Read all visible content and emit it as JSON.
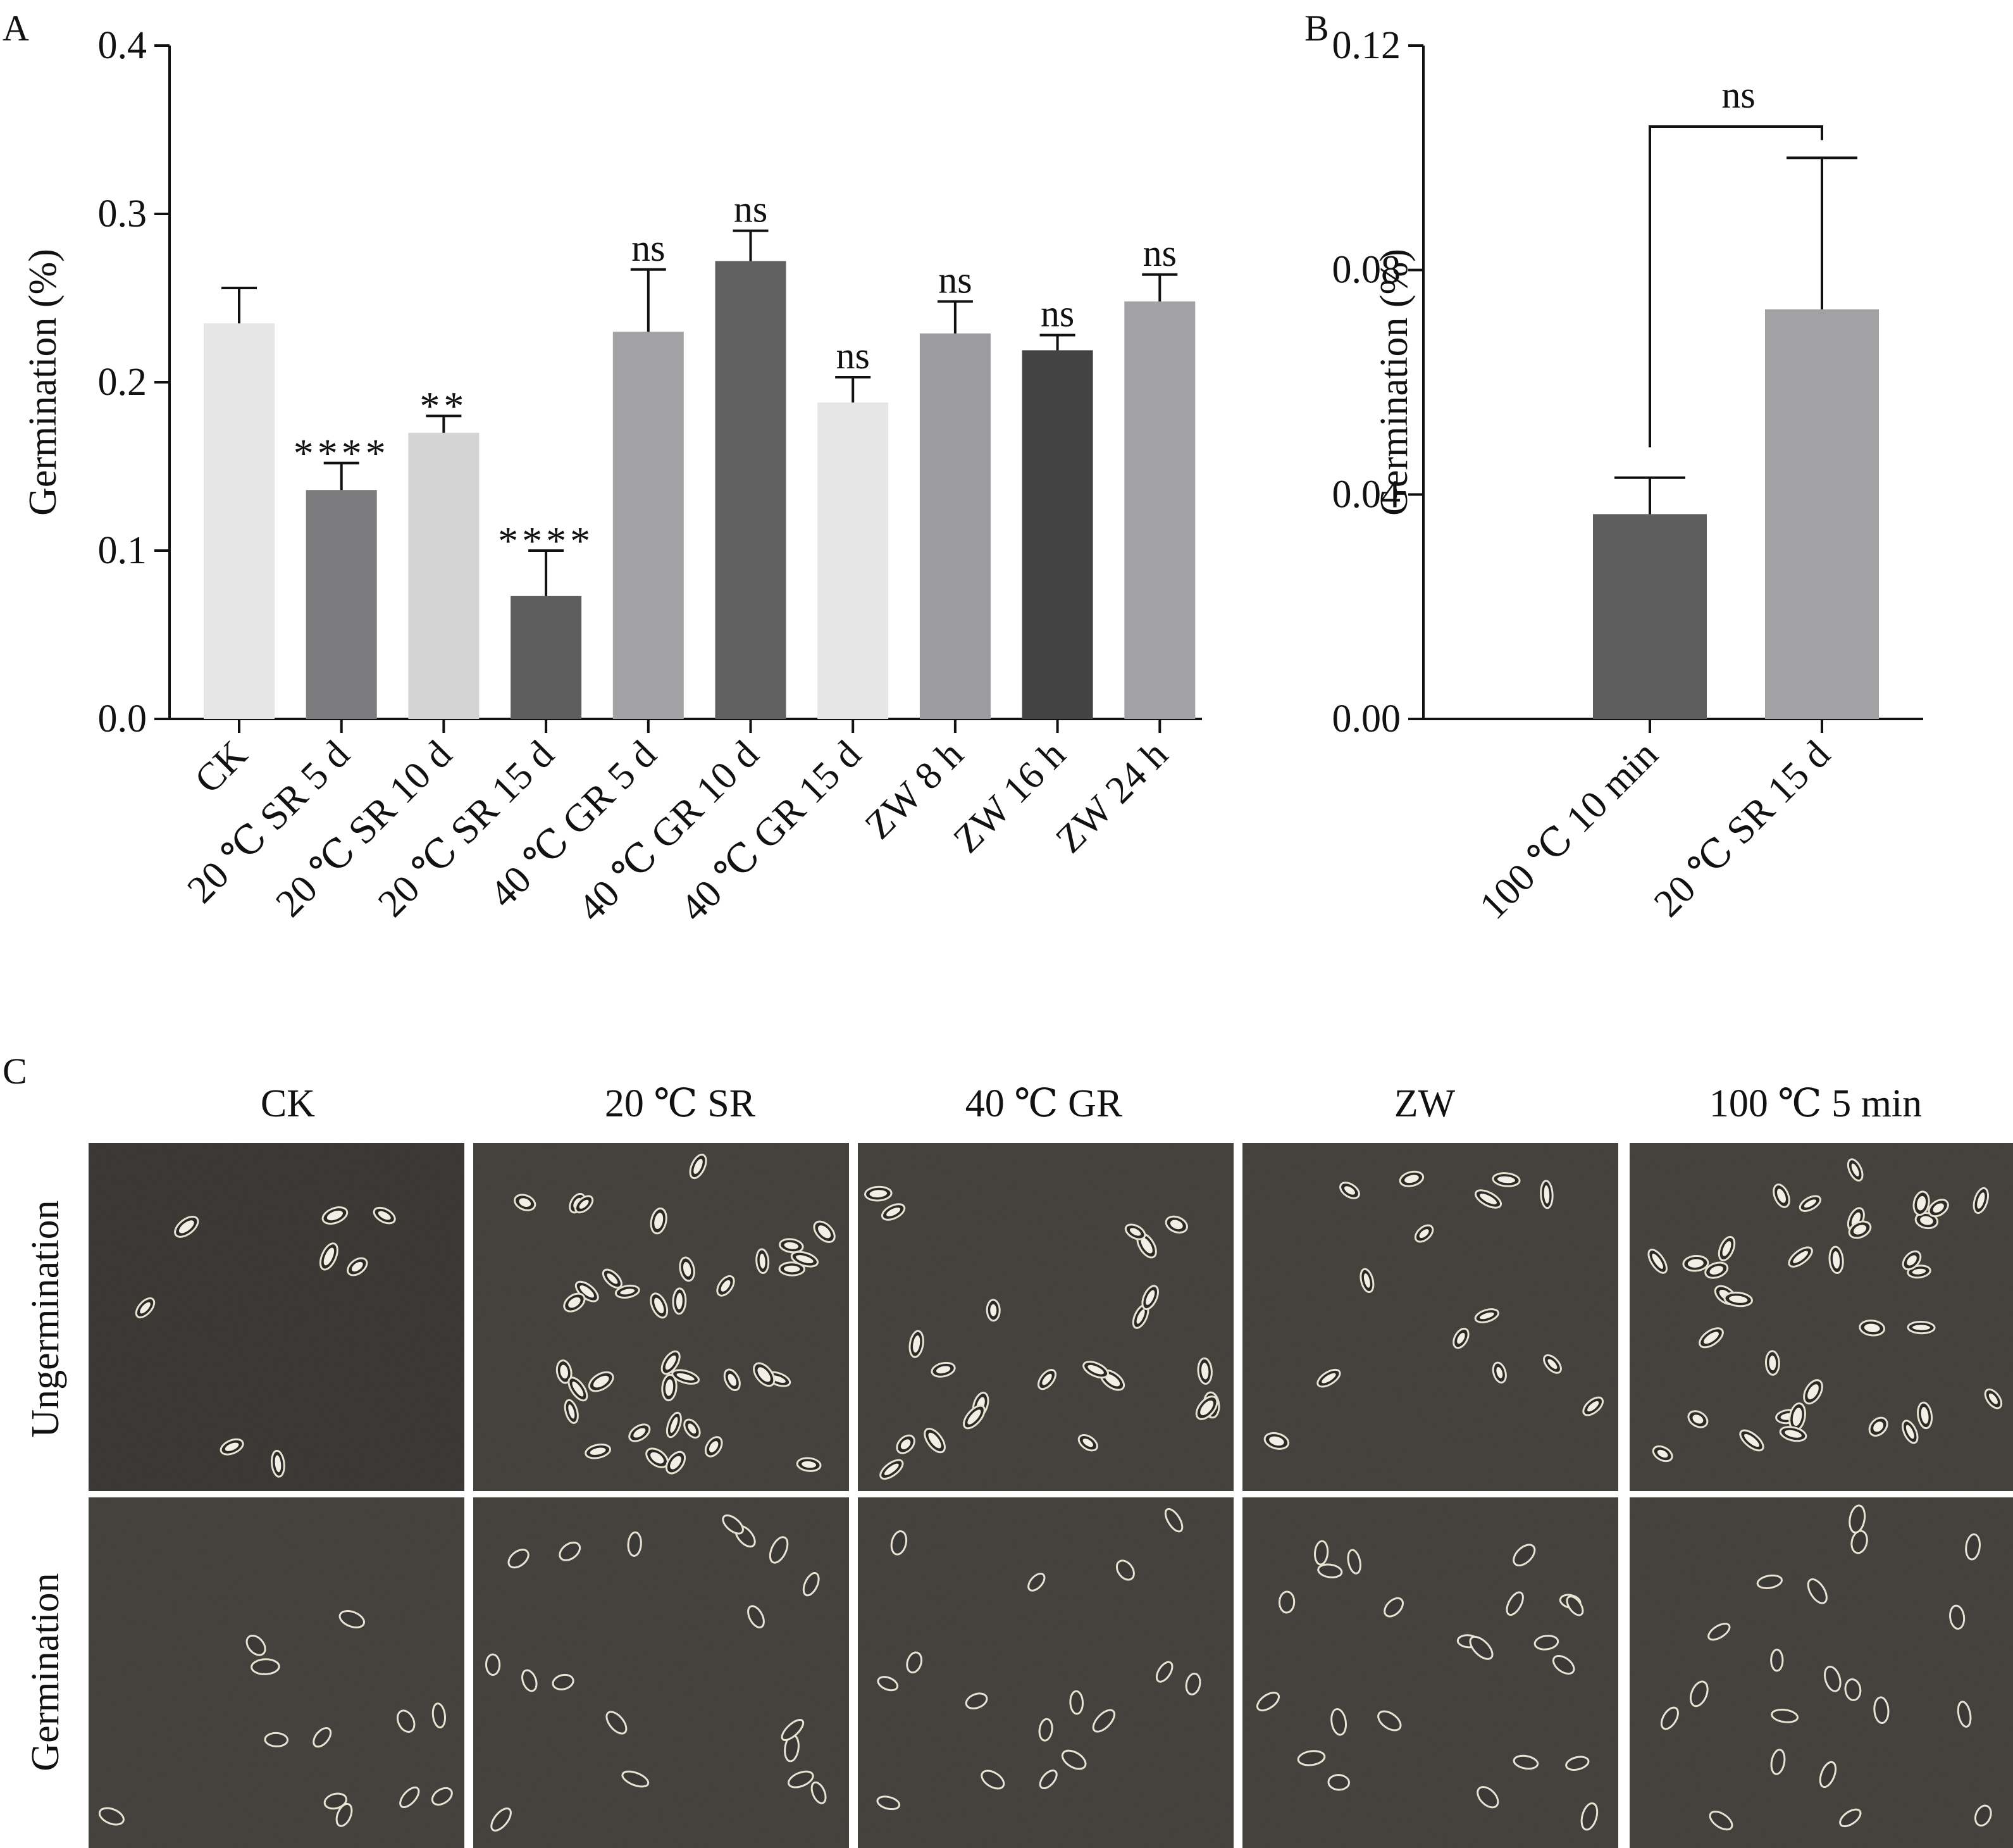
{
  "panels": {
    "a": "A",
    "b": "B",
    "c": "C"
  },
  "chart_data": [
    {
      "type": "bar",
      "panel": "A",
      "ylabel": "Germination (%)",
      "ylim": [
        0,
        0.4
      ],
      "yticks": [
        "0.0",
        "0.1",
        "0.2",
        "0.3",
        "0.4"
      ],
      "categories": [
        "CK",
        "20 ℃ SR 5 d",
        "20 ℃ SR 10 d",
        "20 ℃ SR 15 d",
        "40 ℃ GR 5 d",
        "40 ℃ GR 10 d",
        "40 ℃ GR 15 d",
        "ZW 8 h",
        "ZW 16 h",
        "ZW 24 h"
      ],
      "values": [
        0.235,
        0.136,
        0.17,
        0.073,
        0.23,
        0.272,
        0.188,
        0.229,
        0.219,
        0.248
      ],
      "errors": [
        0.021,
        0.016,
        0.01,
        0.027,
        0.037,
        0.018,
        0.015,
        0.019,
        0.009,
        0.016
      ],
      "significance": [
        "",
        "****",
        "**",
        "****",
        "ns",
        "ns",
        "ns",
        "ns",
        "ns",
        "ns"
      ],
      "colors": [
        "#e6e6e6",
        "#7b7b7d",
        "#d4d4d4",
        "#5e5e5e",
        "#a2a2a4",
        "#606060",
        "#e6e6e6",
        "#9c9c9e",
        "#434343",
        "#a2a2a4"
      ]
    },
    {
      "type": "bar",
      "panel": "B",
      "ylabel": "Germination (%)",
      "ylim": [
        0,
        0.12
      ],
      "yticks": [
        "0.00",
        "0.04",
        "0.08",
        "0.12"
      ],
      "categories": [
        "100 ℃ 10 min",
        "20 ℃ SR 15 d"
      ],
      "values": [
        0.0365,
        0.073
      ],
      "errors": [
        0.0065,
        0.027
      ],
      "comparison": "ns",
      "colors": [
        "#5e5e5e",
        "#a2a2a4"
      ]
    }
  ],
  "micrographs": {
    "columns": [
      "CK",
      "20 ℃ SR",
      "40 ℃ GR",
      "ZW",
      "100 ℃ 5 min"
    ],
    "rows": [
      "Ungermination",
      "Germination"
    ]
  }
}
